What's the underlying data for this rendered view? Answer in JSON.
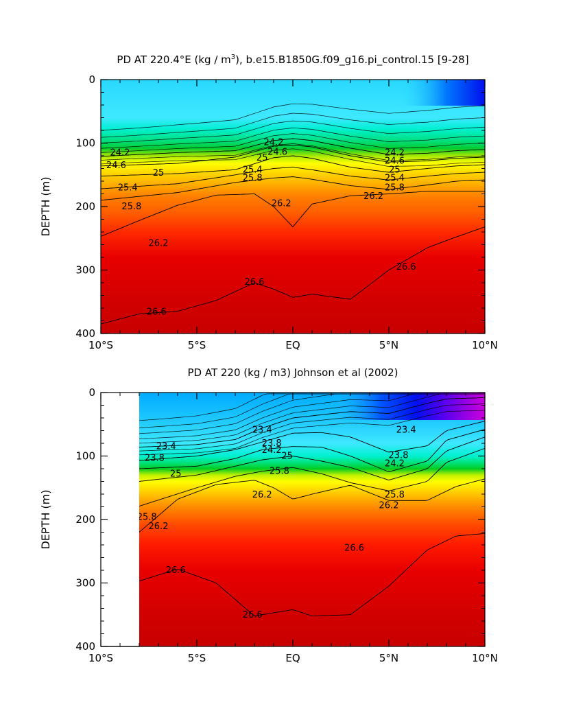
{
  "chart_data": [
    {
      "type": "heatmap",
      "title_parts": [
        "PD AT 220.4°E (kg / m",
        "3",
        "), b.e15.B1850G.f09_g16.pi_control.15 ",
        "[9-28]"
      ],
      "ylabel": "DEPTH (m)",
      "xlabel": "",
      "x_ticks": [
        "10°S",
        "5°S",
        "EQ",
        "5°N",
        "10°N"
      ],
      "y_ticks": [
        "0",
        "100",
        "200",
        "300",
        "400"
      ],
      "xlim": [
        -10,
        10
      ],
      "ylim": [
        400,
        0
      ],
      "colors": [
        "#0010ee",
        "#0055ff",
        "#0099ff",
        "#22ccff",
        "#3ee8ff",
        "#00f0d0",
        "#00e690",
        "#00d84a",
        "#66e010",
        "#c8f000",
        "#ffff00",
        "#ffd800",
        "#ffae00",
        "#ff8800",
        "#ff5a00",
        "#ff2a00",
        "#e80000",
        "#c80000"
      ],
      "levels": [
        23.0,
        23.2,
        23.4,
        23.6,
        23.8,
        24.0,
        24.2,
        24.4,
        24.6,
        24.8,
        25.0,
        25.2,
        25.4,
        25.6,
        25.8,
        26.0,
        26.2,
        26.6
      ],
      "contours": [
        {
          "x": [
            -10,
            -6,
            -3,
            -1,
            0,
            1,
            3,
            5,
            7,
            8.5,
            10
          ],
          "depth": [
            121,
            115,
            112,
            96,
            93,
            96,
            108,
            118,
            116,
            112,
            110
          ],
          "label": "24.2",
          "lx": [
            -9.0,
            -1.0,
            5.3
          ],
          "ly": [
            115,
            99,
            115
          ]
        },
        {
          "x": [
            -10,
            -6,
            -3,
            -1,
            0,
            1,
            3,
            5,
            7,
            8.5,
            10
          ],
          "depth": [
            136,
            132,
            122,
            105,
            103,
            106,
            120,
            130,
            128,
            124,
            122
          ],
          "label": "24.6",
          "lx": [
            -9.2,
            -0.8,
            5.3
          ],
          "ly": [
            135,
            114,
            128
          ]
        },
        {
          "x": [
            -10,
            -6,
            -3,
            -1,
            0,
            1,
            3,
            5,
            7,
            8.5,
            10
          ],
          "depth": [
            152,
            148,
            142,
            123,
            120,
            124,
            138,
            146,
            140,
            136,
            134
          ],
          "label": "25",
          "lx": [
            -7.0,
            -1.6,
            5.3
          ],
          "ly": [
            147,
            123,
            142
          ]
        },
        {
          "x": [
            -10,
            -6,
            -3,
            -1,
            0,
            1,
            3,
            5,
            7,
            8.5,
            10
          ],
          "depth": [
            172,
            164,
            150,
            140,
            138,
            142,
            152,
            158,
            152,
            148,
            146
          ],
          "label": "25.4",
          "lx": [
            -8.6,
            -2.1,
            5.3
          ],
          "ly": [
            170,
            142,
            155
          ]
        },
        {
          "x": [
            -10,
            -6,
            -3,
            -1,
            0,
            1,
            3,
            5,
            7,
            8.5,
            10
          ],
          "depth": [
            190,
            178,
            162,
            155,
            153,
            157,
            167,
            173,
            166,
            160,
            158
          ],
          "label": "25.8",
          "lx": [
            -8.4,
            -2.1,
            5.3
          ],
          "ly": [
            200,
            155,
            170
          ]
        },
        {
          "x": [
            -10,
            -8,
            -6,
            -4,
            -2,
            -1,
            0,
            1,
            3,
            5,
            7,
            8.5,
            10
          ],
          "depth": [
            247,
            222,
            198,
            182,
            180,
            200,
            232,
            196,
            183,
            180,
            176,
            176,
            176
          ],
          "label": "26.2",
          "lx": [
            -7.0,
            -0.6,
            4.2
          ],
          "ly": [
            258,
            195,
            184
          ]
        },
        {
          "x": [
            -10,
            -8,
            -6,
            -4,
            -2,
            -1,
            0,
            1,
            3,
            5,
            7,
            8.5,
            10
          ],
          "depth": [
            385,
            369,
            365,
            348,
            320,
            330,
            343,
            338,
            346,
            300,
            265,
            248,
            232
          ],
          "label": "26.6",
          "lx": [
            -7.1,
            -2.0,
            5.9
          ],
          "ly": [
            366,
            319,
            295
          ]
        }
      ]
    },
    {
      "type": "heatmap",
      "title": "PD AT 220 (kg / m3) Johnson et al (2002)",
      "ylabel": "DEPTH (m)",
      "xlabel": "",
      "x_ticks": [
        "10°S",
        "5°S",
        "EQ",
        "5°N",
        "10°N"
      ],
      "y_ticks": [
        "0",
        "100",
        "200",
        "300",
        "400"
      ],
      "xlim": [
        -10,
        10
      ],
      "ylim": [
        400,
        0
      ],
      "data_xlim": [
        -8,
        10
      ],
      "contours": [
        {
          "x": [
            -8,
            -5,
            -3,
            -1.6,
            0,
            1.5,
            3,
            5,
            7,
            8,
            10
          ],
          "depth": [
            86,
            82,
            74,
            56,
            40,
            35,
            30,
            33,
            17,
            10,
            8
          ],
          "label": "23.4",
          "lx": [
            -6.6,
            -1.6,
            5.9
          ],
          "ly": [
            85,
            59,
            59
          ]
        },
        {
          "x": [
            -8,
            -5,
            -3,
            -1.6,
            0,
            1.5,
            3,
            5,
            7,
            8,
            10
          ],
          "depth": [
            107,
            100,
            90,
            78,
            64,
            63,
            70,
            94,
            84,
            60,
            45
          ],
          "label": "23.8",
          "lx": [
            -7.2,
            -1.1,
            5.5
          ],
          "ly": [
            103,
            80,
            99
          ]
        },
        {
          "x": [
            -8,
            -5,
            -3,
            -1.6,
            0,
            1.5,
            3,
            5,
            7,
            8,
            10
          ],
          "depth": [
            120,
            116,
            104,
            90,
            85,
            86,
            100,
            125,
            108,
            75,
            58
          ],
          "label": "24.2",
          "lx": [
            -1.1,
            5.3
          ],
          "ly": [
            91,
            112
          ]
        },
        {
          "x": [
            -8,
            -5,
            -3,
            -1.6,
            0,
            1.5,
            3,
            5,
            7,
            8,
            10
          ],
          "depth": [
            140,
            130,
            116,
            106,
            100,
            108,
            118,
            138,
            120,
            92,
            70
          ],
          "label": "25",
          "lx": [
            -6.1,
            -0.3
          ],
          "ly": [
            128,
            100
          ]
        },
        {
          "x": [
            -8,
            -5,
            -3,
            -1.6,
            0,
            1.5,
            3,
            5,
            7,
            8,
            10
          ],
          "depth": [
            179,
            150,
            132,
            124,
            118,
            128,
            142,
            155,
            140,
            110,
            88
          ],
          "label": "25.8",
          "lx": [
            -7.6,
            -0.7,
            5.3
          ],
          "ly": [
            196,
            124,
            161
          ]
        },
        {
          "x": [
            -8,
            -6,
            -4,
            -2,
            -1,
            0,
            1,
            3,
            5,
            7,
            8.5,
            10
          ],
          "depth": [
            220,
            168,
            145,
            138,
            150,
            168,
            160,
            146,
            170,
            170,
            148,
            136
          ],
          "label": "26.2",
          "lx": [
            -7.0,
            -1.6,
            5.0
          ],
          "ly": [
            211,
            161,
            178
          ]
        },
        {
          "x": [
            -8,
            -6,
            -4,
            -2,
            0,
            1,
            3,
            5,
            7,
            8.5,
            10
          ],
          "depth": [
            297,
            278,
            300,
            352,
            342,
            352,
            350,
            305,
            248,
            226,
            222
          ],
          "label": "26.6",
          "lx": [
            -6.1,
            -2.1,
            3.2
          ],
          "ly": [
            280,
            350,
            245
          ]
        }
      ]
    }
  ]
}
